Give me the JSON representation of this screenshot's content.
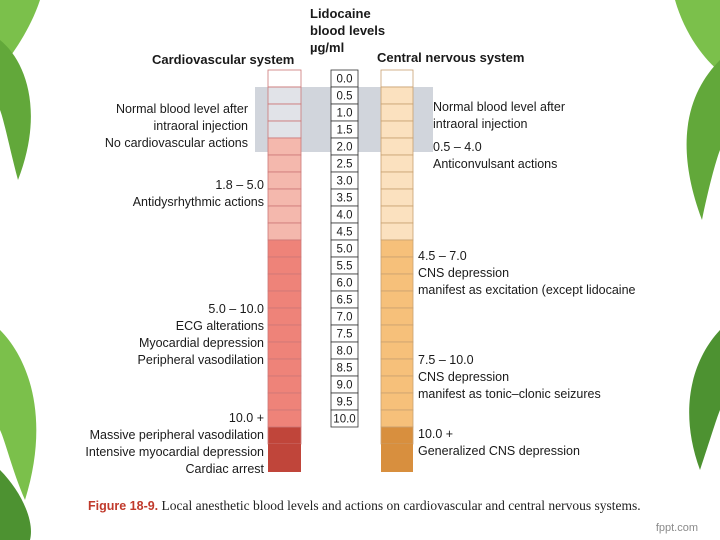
{
  "header": {
    "title_line1": "Lidocaine",
    "title_line2": "blood levels",
    "title_line3": "µg/ml",
    "cardiovascular": "Cardiovascular system",
    "cns": "Central nervous system"
  },
  "scale": [
    "0.0",
    "0.5",
    "1.0",
    "1.5",
    "2.0",
    "2.5",
    "3.0",
    "3.5",
    "4.0",
    "4.5",
    "5.0",
    "5.5",
    "6.0",
    "6.5",
    "7.0",
    "7.5",
    "8.0",
    "8.5",
    "9.0",
    "9.5",
    "10.0"
  ],
  "cardio_labels": {
    "normal_1": "Normal blood level after",
    "normal_2": "intraoral injection",
    "normal_3": "No cardiovascular actions",
    "anti_1": "1.8 – 5.0",
    "anti_2": "Antidysrhythmic actions",
    "ecg_1": "5.0 – 10.0",
    "ecg_2": "ECG alterations",
    "ecg_3": "Myocardial depression",
    "ecg_4": "Peripheral vasodilation",
    "mass_1": "10.0 +",
    "mass_2": "Massive peripheral vasodilation",
    "mass_3": "Intensive myocardial depression",
    "mass_4": "Cardiac arrest"
  },
  "cns_labels": {
    "normal_1": "Normal blood level after",
    "normal_2": "intraoral injection",
    "anticonv_1": "0.5 – 4.0",
    "anticonv_2": "Anticonvulsant actions",
    "dep1_1": "4.5 – 7.0",
    "dep1_2": "CNS depression",
    "dep1_3": "manifest as excitation (except lidocaine",
    "dep2_1": "7.5 – 10.0",
    "dep2_2": "CNS depression",
    "dep2_3": "manifest as tonic–clonic seizures",
    "gen_1": "10.0 +",
    "gen_2": "Generalized CNS depression"
  },
  "caption": {
    "figure": "Figure 18-9.",
    "text": "Local anesthetic blood levels and actions on cardiovascular and central nervous systems."
  },
  "brand": "fppt.com",
  "colors": {
    "cardio_light": "#f4b8ad",
    "cardio_mid": "#ee8379",
    "cardio_dark": "#c0453a",
    "cns_light": "#fbe1bf",
    "cns_mid": "#f6c07a",
    "cns_dark": "#d88f3e",
    "normal_band": "#c9ced6"
  }
}
